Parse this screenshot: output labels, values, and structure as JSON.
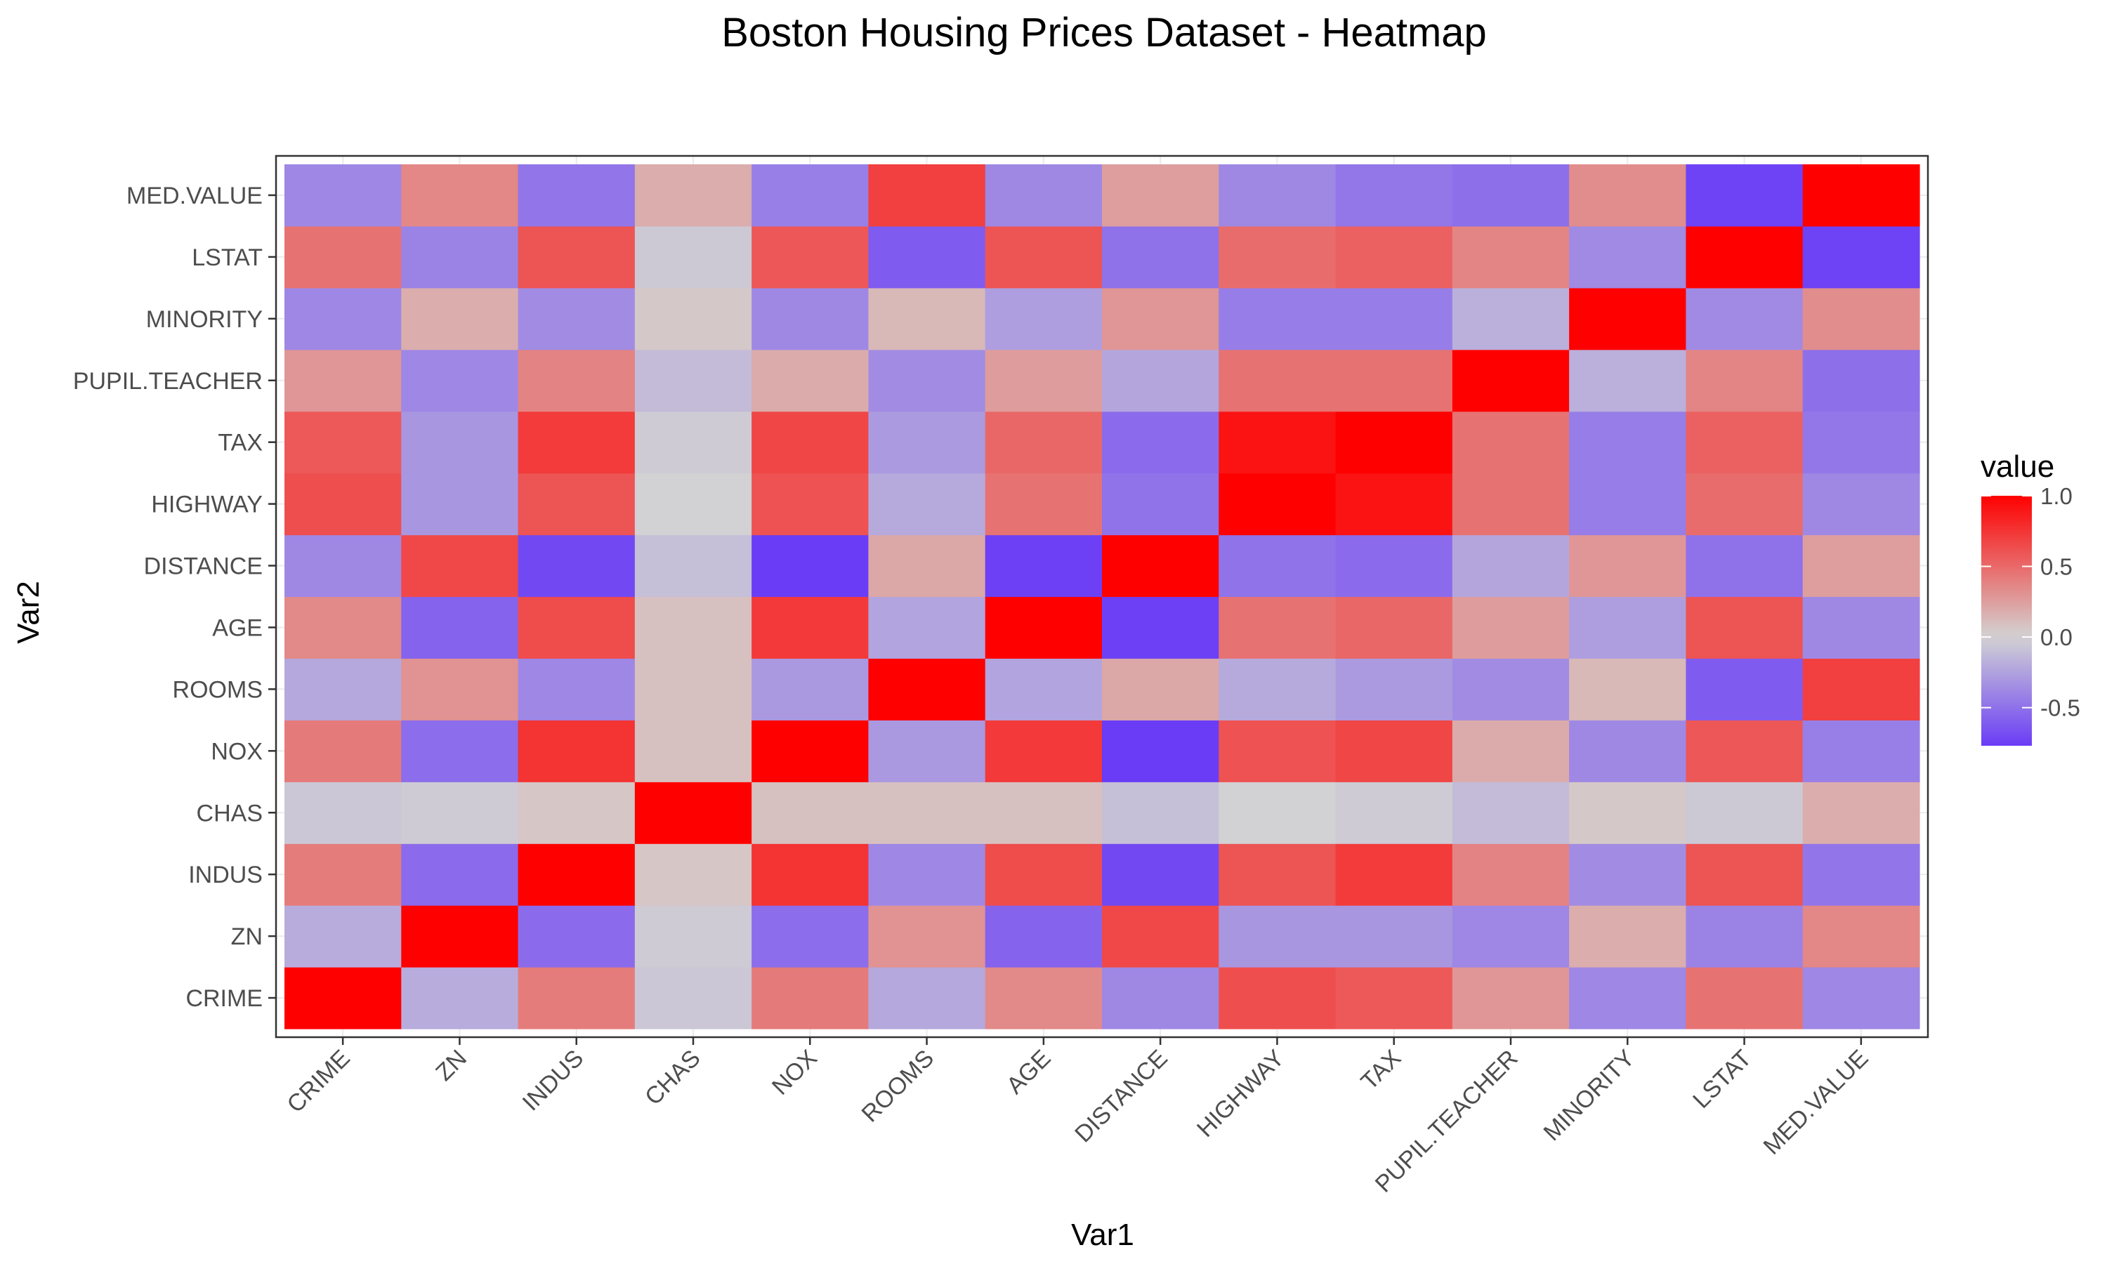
{
  "chart_data": {
    "type": "heatmap",
    "title": "Boston Housing Prices Dataset - Heatmap",
    "xlabel": "Var1",
    "ylabel": "Var2",
    "x_categories": [
      "CRIME",
      "ZN",
      "INDUS",
      "CHAS",
      "NOX",
      "ROOMS",
      "AGE",
      "DISTANCE",
      "HIGHWAY",
      "TAX",
      "PUPIL.TEACHER",
      "MINORITY",
      "LSTAT",
      "MED.VALUE"
    ],
    "y_categories": [
      "CRIME",
      "ZN",
      "INDUS",
      "CHAS",
      "NOX",
      "ROOMS",
      "AGE",
      "DISTANCE",
      "HIGHWAY",
      "TAX",
      "PUPIL.TEACHER",
      "MINORITY",
      "LSTAT",
      "MED.VALUE"
    ],
    "values": [
      [
        1.0,
        -0.2,
        0.41,
        -0.06,
        0.42,
        -0.22,
        0.35,
        -0.38,
        0.63,
        0.58,
        0.29,
        -0.39,
        0.46,
        -0.39
      ],
      [
        -0.2,
        1.0,
        -0.53,
        -0.04,
        -0.52,
        0.31,
        -0.57,
        0.66,
        -0.31,
        -0.31,
        -0.39,
        0.18,
        -0.41,
        0.36
      ],
      [
        0.41,
        -0.53,
        1.0,
        0.06,
        0.76,
        -0.39,
        0.64,
        -0.71,
        0.6,
        0.72,
        0.38,
        -0.36,
        0.6,
        -0.48
      ],
      [
        -0.06,
        -0.04,
        0.06,
        1.0,
        0.09,
        0.09,
        0.09,
        -0.1,
        -0.01,
        -0.04,
        -0.12,
        0.05,
        -0.05,
        0.18
      ],
      [
        0.42,
        -0.52,
        0.76,
        0.09,
        1.0,
        -0.3,
        0.73,
        -0.77,
        0.61,
        0.67,
        0.19,
        -0.38,
        0.59,
        -0.43
      ],
      [
        -0.22,
        0.31,
        -0.39,
        0.09,
        -0.3,
        1.0,
        -0.24,
        0.21,
        -0.21,
        -0.29,
        -0.36,
        0.13,
        -0.61,
        0.7
      ],
      [
        0.35,
        -0.57,
        0.64,
        0.09,
        0.73,
        -0.24,
        1.0,
        -0.75,
        0.46,
        0.51,
        0.26,
        -0.27,
        0.6,
        -0.38
      ],
      [
        -0.38,
        0.66,
        -0.71,
        -0.1,
        -0.77,
        0.21,
        -0.75,
        1.0,
        -0.49,
        -0.53,
        -0.23,
        0.29,
        -0.5,
        0.25
      ],
      [
        0.63,
        -0.31,
        0.6,
        -0.01,
        0.61,
        -0.21,
        0.46,
        -0.49,
        1.0,
        0.91,
        0.46,
        -0.44,
        0.49,
        -0.38
      ],
      [
        0.58,
        -0.31,
        0.72,
        -0.04,
        0.67,
        -0.29,
        0.51,
        -0.53,
        0.91,
        1.0,
        0.46,
        -0.44,
        0.54,
        -0.47
      ],
      [
        0.29,
        -0.39,
        0.38,
        -0.12,
        0.19,
        -0.36,
        0.26,
        -0.23,
        0.46,
        0.46,
        1.0,
        -0.18,
        0.37,
        -0.51
      ],
      [
        -0.39,
        0.18,
        -0.36,
        0.05,
        -0.38,
        0.13,
        -0.27,
        0.29,
        -0.44,
        -0.44,
        -0.18,
        1.0,
        -0.37,
        0.33
      ],
      [
        0.46,
        -0.41,
        0.6,
        -0.05,
        0.59,
        -0.61,
        0.6,
        -0.5,
        0.49,
        0.54,
        0.37,
        -0.37,
        1.0,
        -0.74
      ],
      [
        -0.39,
        0.36,
        -0.48,
        0.18,
        -0.43,
        0.7,
        -0.38,
        0.25,
        -0.38,
        -0.47,
        -0.51,
        0.33,
        -0.74,
        1.0
      ]
    ],
    "value_range": [
      -0.77,
      1.0
    ],
    "legend": {
      "title": "value",
      "position": "right",
      "ticks": [
        1.0,
        0.5,
        0.0,
        -0.5
      ],
      "tick_labels": [
        "1.0",
        "0.5",
        "0.0",
        "-0.5"
      ]
    },
    "colors": {
      "low": "#6a3cf6",
      "mid": "#d3d3d3",
      "high": "#ff0000"
    },
    "grid": true,
    "panel_border": true
  }
}
